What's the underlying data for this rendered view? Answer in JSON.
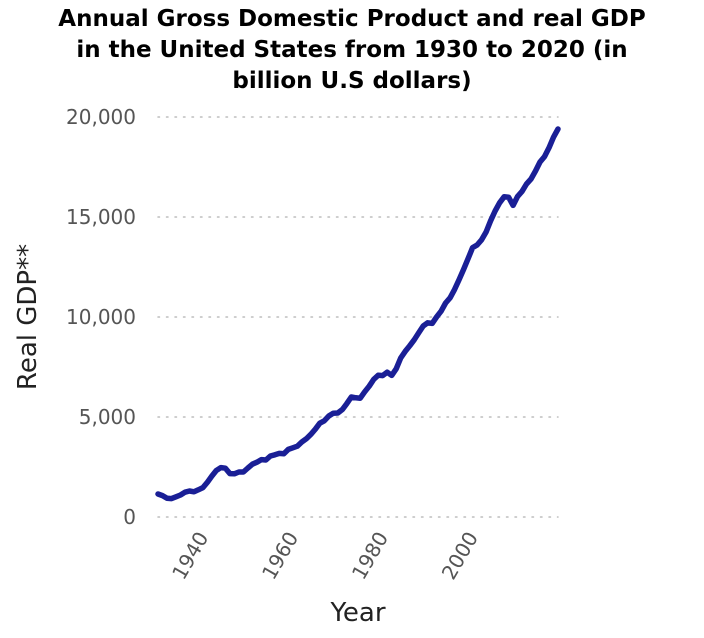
{
  "chart_data": {
    "type": "line",
    "title_lines": [
      "Annual Gross Domestic Product and real GDP",
      "in the United States from 1930 to 2020 (in",
      "billion U.S dollars)"
    ],
    "xlabel": "Year",
    "ylabel": "Real GDP**",
    "xlim": [
      1930,
      2019
    ],
    "ylim": [
      0,
      20000
    ],
    "x_ticks": [
      1940,
      1960,
      1980,
      2000
    ],
    "x_tick_labels": [
      "1940",
      "1960",
      "1980",
      "2000"
    ],
    "y_ticks": [
      0,
      5000,
      10000,
      15000,
      20000
    ],
    "y_tick_labels": [
      "0",
      "5,000",
      "10,000",
      "15,000",
      "20,000"
    ],
    "grid": "horizontal dotted",
    "line_color": "#1a1f96",
    "series": [
      {
        "x": [
          1930,
          1931,
          1932,
          1933,
          1934,
          1935,
          1936,
          1937,
          1938,
          1939,
          1940,
          1941,
          1942,
          1943,
          1944,
          1945,
          1946,
          1947,
          1948,
          1949,
          1950,
          1951,
          1952,
          1953,
          1954,
          1955,
          1956,
          1957,
          1958,
          1959,
          1960,
          1961,
          1962,
          1963,
          1964,
          1965,
          1966,
          1967,
          1968,
          1969,
          1970,
          1971,
          1972,
          1973,
          1974,
          1975,
          1976,
          1977,
          1978,
          1979,
          1980,
          1981,
          1982,
          1983,
          1984,
          1985,
          1986,
          1987,
          1988,
          1989,
          1990,
          1991,
          1992,
          1993,
          1994,
          1995,
          1996,
          1997,
          1998,
          1999,
          2000,
          2001,
          2002,
          2003,
          2004,
          2005,
          2006,
          2007,
          2008,
          2009,
          2010,
          2011,
          2012,
          2013,
          2014,
          2015,
          2016,
          2017,
          2018,
          2019
        ],
        "values": [
          1150,
          1070,
          940,
          920,
          1010,
          1100,
          1240,
          1300,
          1260,
          1360,
          1470,
          1740,
          2050,
          2330,
          2470,
          2440,
          2170,
          2160,
          2250,
          2250,
          2450,
          2640,
          2740,
          2870,
          2850,
          3050,
          3110,
          3180,
          3160,
          3380,
          3460,
          3540,
          3750,
          3910,
          4130,
          4390,
          4690,
          4810,
          5050,
          5190,
          5200,
          5370,
          5670,
          6000,
          5960,
          5940,
          6260,
          6540,
          6880,
          7090,
          7070,
          7240,
          7080,
          7410,
          7950,
          8280,
          8560,
          8860,
          9210,
          9550,
          9710,
          9680,
          10010,
          10290,
          10700,
          10960,
          11380,
          11870,
          12380,
          12920,
          13470,
          13600,
          13860,
          14250,
          14810,
          15300,
          15710,
          16010,
          15990,
          15580,
          16030,
          16280,
          16650,
          16900,
          17300,
          17750,
          18020,
          18460,
          18990,
          19400
        ]
      }
    ]
  }
}
